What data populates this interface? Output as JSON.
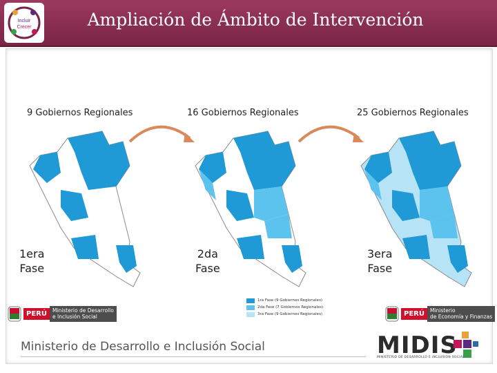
{
  "header": {
    "title": "Ampliación de Ámbito de Intervención",
    "logo_text": "Incluir\nCrecer"
  },
  "phases": [
    {
      "heading": "9 Gobiernos Regionales",
      "label_line1": "1era",
      "label_line2": "Fase"
    },
    {
      "heading": "16 Gobiernos Regionales",
      "label_line1": "2da",
      "label_line2": "Fase"
    },
    {
      "heading": "25 Gobiernos Regionales",
      "label_line1": "3era",
      "label_line2": "Fase"
    }
  ],
  "legend": [
    {
      "label": "1ra Fase (9 Gobiernos Regionales)",
      "color": "#1f9ad6"
    },
    {
      "label": "2da Fase (7 Gobiernos Regionales)",
      "color": "#5cc3ee"
    },
    {
      "label": "3ra Fase (9 Gobiernos Regionales)",
      "color": "#b7e3f7"
    }
  ],
  "badges": {
    "left": {
      "country": "PERÚ",
      "ministry": "Ministerio de Desarrollo\ne Inclusión Social"
    },
    "right": {
      "country": "PERÚ",
      "ministry": "Ministerio\nde Economía y Finanzas"
    }
  },
  "footer": {
    "ministry_name": "Ministerio de Desarrollo e Inclusión Social",
    "brand": "MIDIS",
    "brand_sub": "MINISTERIO DE DESARROLLO E INCLUSIÓN SOCIAL"
  },
  "colors": {
    "header": "#8c2f52",
    "phase1": "#1f9ad6",
    "phase2": "#5cc3ee",
    "phase3": "#b7e3f7",
    "arrow": "#d9895a"
  }
}
